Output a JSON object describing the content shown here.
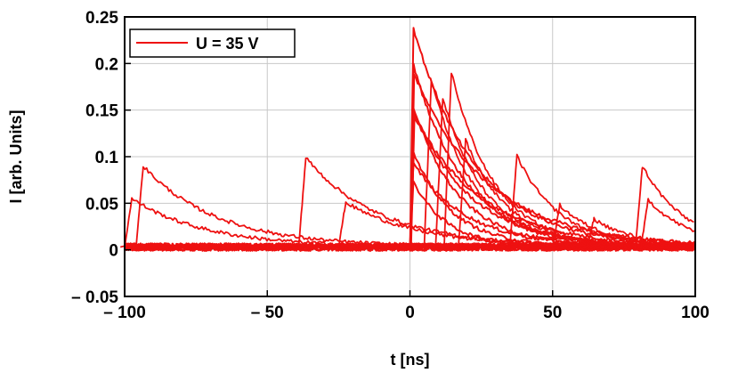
{
  "chart_data": {
    "type": "line",
    "xlabel": "t [ns]",
    "ylabel": "I [arb. Units]",
    "xlim": [
      -100,
      100
    ],
    "ylim": [
      -0.05,
      0.25
    ],
    "xticks": [
      -100,
      -50,
      0,
      50,
      100
    ],
    "yticks": [
      -0.05,
      0,
      0.05,
      0.1,
      0.15,
      0.2,
      0.25
    ],
    "xtick_labels": [
      "– 100",
      "– 50",
      "0",
      "50",
      "100"
    ],
    "ytick_labels": [
      "– 0.05",
      "0",
      "0.05",
      "0.1",
      "0.15",
      "0.2",
      "0.25"
    ],
    "grid": true,
    "legend": {
      "placement": "top-left",
      "entries": [
        "U = 35 V"
      ]
    },
    "color": "#ee1111",
    "series": [
      {
        "name": "U = 35 V",
        "note": "main pulses at t=0 (overlaid waveforms)",
        "peaks": [
          0.235,
          0.195,
          0.185,
          0.15,
          0.145,
          0.14,
          0.1,
          0.09,
          0.07
        ],
        "t_start": 0,
        "rise_ns": 1.2
      },
      {
        "name": "U = 35 V",
        "note": "secondary pulses",
        "events": [
          {
            "t": -100,
            "peak": 0.052
          },
          {
            "t": -96,
            "peak": 0.087
          },
          {
            "t": -39,
            "peak": 0.096
          },
          {
            "t": -25,
            "peak": 0.048
          },
          {
            "t": 5,
            "peak": 0.18
          },
          {
            "t": 9,
            "peak": 0.16
          },
          {
            "t": 12,
            "peak": 0.188
          },
          {
            "t": 17,
            "peak": 0.115
          },
          {
            "t": 35,
            "peak": 0.098
          },
          {
            "t": 50,
            "peak": 0.045
          },
          {
            "t": 62,
            "peak": 0.03
          },
          {
            "t": 79,
            "peak": 0.087
          },
          {
            "t": 81,
            "peak": 0.051
          }
        ]
      }
    ],
    "baseline": {
      "value": 0.003,
      "noise": 0.004
    }
  }
}
